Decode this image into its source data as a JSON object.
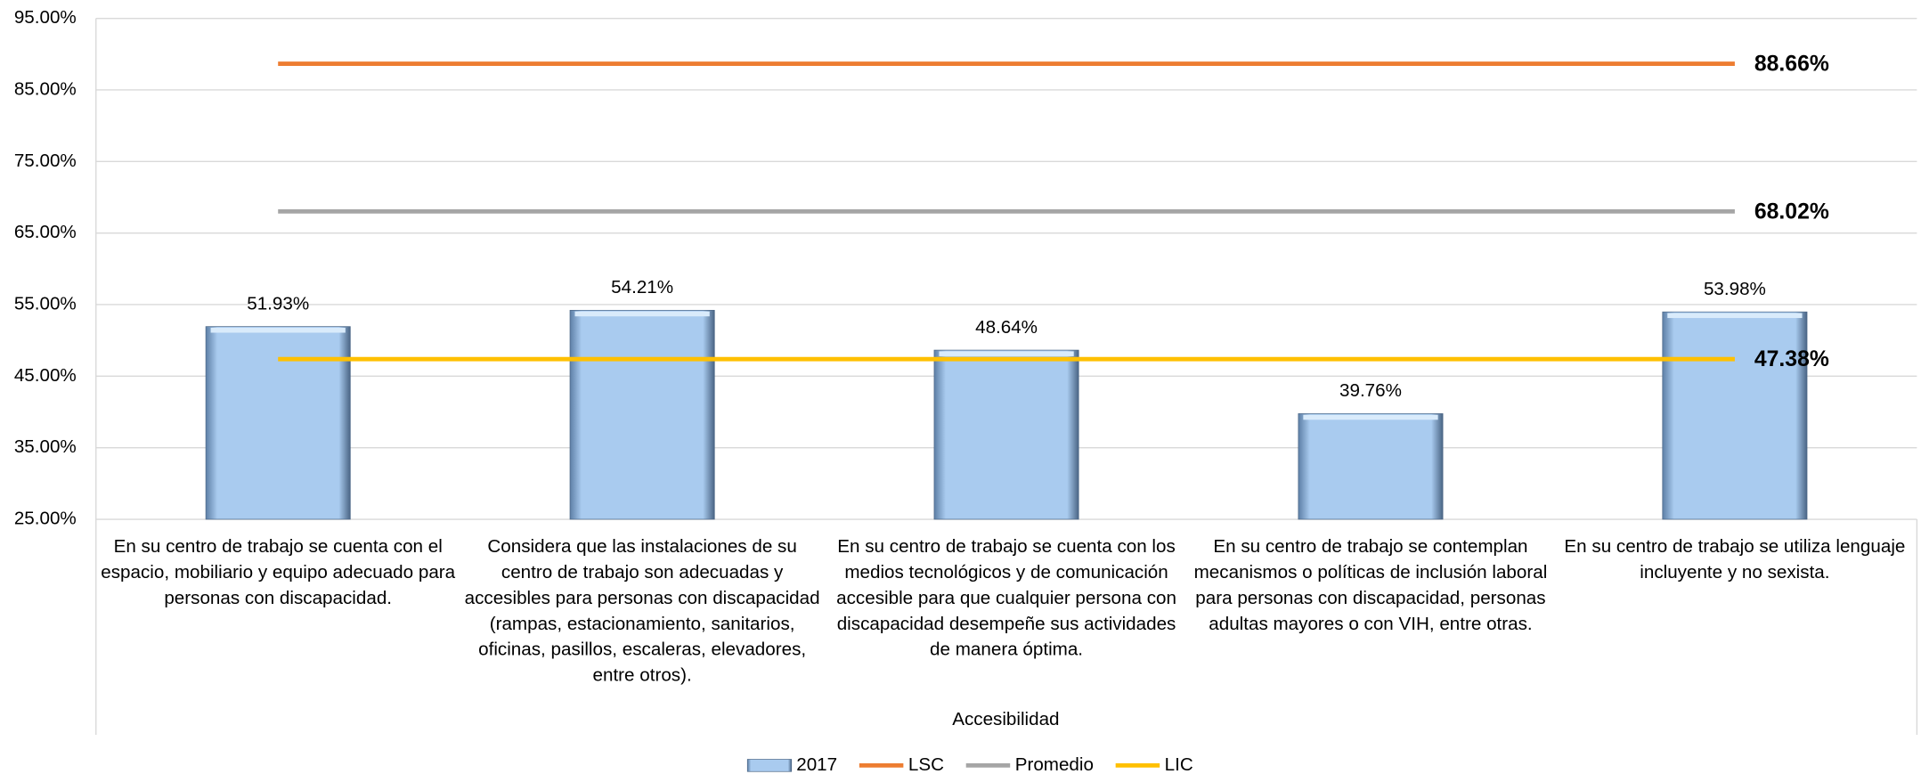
{
  "chart_data": {
    "type": "bar",
    "categories": [
      "En su centro de trabajo se cuenta con el espacio, mobiliario y equipo adecuado para personas con discapacidad.",
      "Considera que las instalaciones de su centro de trabajo son adecuadas y accesibles para personas con discapacidad (rampas, estacionamiento, sanitarios, oficinas, pasillos, escaleras, elevadores, entre otros).",
      "En su centro de trabajo se cuenta con los medios tecnológicos y de comunicación accesible para que cualquier persona con discapacidad desempeñe sus actividades de manera óptima.",
      "En su centro de trabajo se contemplan mecanismos o políticas de inclusión laboral para personas con discapacidad, personas adultas mayores o con VIH, entre otras.",
      "En su centro de trabajo se utiliza lenguaje incluyente y no sexista."
    ],
    "x_label": "Accesibilidad",
    "series": [
      {
        "name": "2017",
        "type": "bar",
        "color": "#a9cbef",
        "values": [
          51.93,
          54.21,
          48.64,
          39.76,
          53.98
        ],
        "value_labels": [
          "51.93%",
          "54.21%",
          "48.64%",
          "39.76%",
          "53.98%"
        ]
      },
      {
        "name": "LSC",
        "type": "line",
        "color": "#ed7d31",
        "values": [
          88.66,
          88.66,
          88.66,
          88.66,
          88.66
        ],
        "end_label": "88.66%"
      },
      {
        "name": "Promedio",
        "type": "line",
        "color": "#a5a5a5",
        "values": [
          68.02,
          68.02,
          68.02,
          68.02,
          68.02
        ],
        "end_label": "68.02%"
      },
      {
        "name": "LIC",
        "type": "line",
        "color": "#ffc000",
        "values": [
          47.38,
          47.38,
          47.38,
          47.38,
          47.38
        ],
        "end_label": "47.38%"
      }
    ],
    "ylim": [
      25,
      95
    ],
    "yticks": [
      {
        "value": 25,
        "label": "25.00%"
      },
      {
        "value": 35,
        "label": "35.00%"
      },
      {
        "value": 45,
        "label": "45.00%"
      },
      {
        "value": 55,
        "label": "55.00%"
      },
      {
        "value": 65,
        "label": "65.00%"
      },
      {
        "value": 75,
        "label": "75.00%"
      },
      {
        "value": 85,
        "label": "85.00%"
      },
      {
        "value": 95,
        "label": "95.00%"
      }
    ],
    "grid": true,
    "legend": "bottom"
  }
}
